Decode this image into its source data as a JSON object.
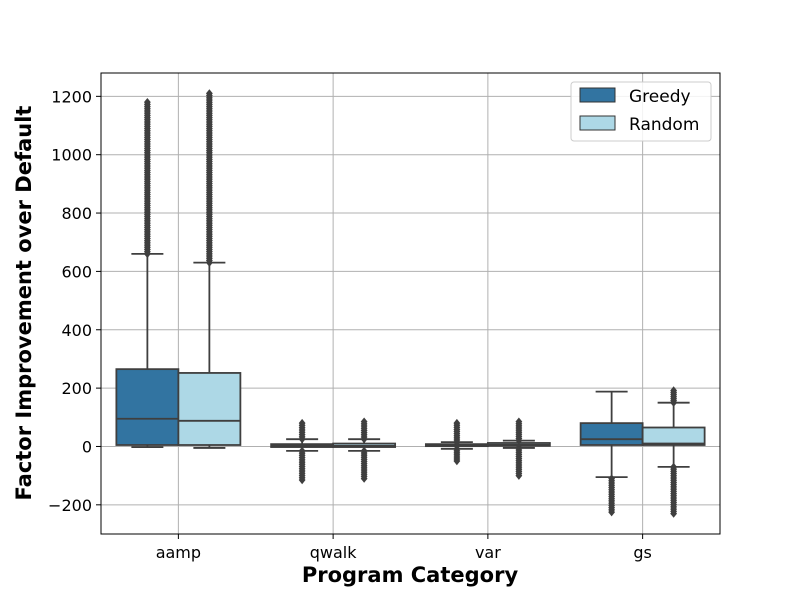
{
  "chart_data": {
    "type": "box",
    "xlabel": "Program Category",
    "ylabel": "Factor Improvement over Default",
    "ylim": [
      -300,
      1280
    ],
    "yticks": [
      -200,
      0,
      200,
      400,
      600,
      800,
      1000,
      1200
    ],
    "grid": true,
    "legend_position": "top-right",
    "categories": [
      "aamp",
      "qwalk",
      "var",
      "gs"
    ],
    "series": [
      {
        "name": "Greedy",
        "color": "#3274a1",
        "boxes": [
          {
            "whislo": -2,
            "q1": 5,
            "med": 95,
            "q3": 265,
            "whishi": 660,
            "outliers_range": [
              660,
              1180
            ]
          },
          {
            "whislo": -15,
            "q1": -2,
            "med": 2,
            "q3": 8,
            "whishi": 25,
            "outliers_range": [
              -115,
              80
            ]
          },
          {
            "whislo": -8,
            "q1": 2,
            "med": 5,
            "q3": 8,
            "whishi": 15,
            "outliers_range": [
              -50,
              80
            ]
          },
          {
            "whislo": -105,
            "q1": 5,
            "med": 25,
            "q3": 80,
            "whishi": 188,
            "outliers_range": [
              -225,
              -110
            ]
          }
        ]
      },
      {
        "name": "Random",
        "color": "#add8e6",
        "boxes": [
          {
            "whislo": -5,
            "q1": 5,
            "med": 88,
            "q3": 252,
            "whishi": 630,
            "outliers_range": [
              630,
              1210
            ]
          },
          {
            "whislo": -15,
            "q1": -2,
            "med": 2,
            "q3": 10,
            "whishi": 25,
            "outliers_range": [
              -110,
              85
            ]
          },
          {
            "whislo": -5,
            "q1": 2,
            "med": 6,
            "q3": 12,
            "whishi": 20,
            "outliers_range": [
              -100,
              85
            ]
          },
          {
            "whislo": -70,
            "q1": 5,
            "med": 10,
            "q3": 65,
            "whishi": 150,
            "outliers_range": [
              -230,
              192
            ]
          }
        ]
      }
    ]
  }
}
